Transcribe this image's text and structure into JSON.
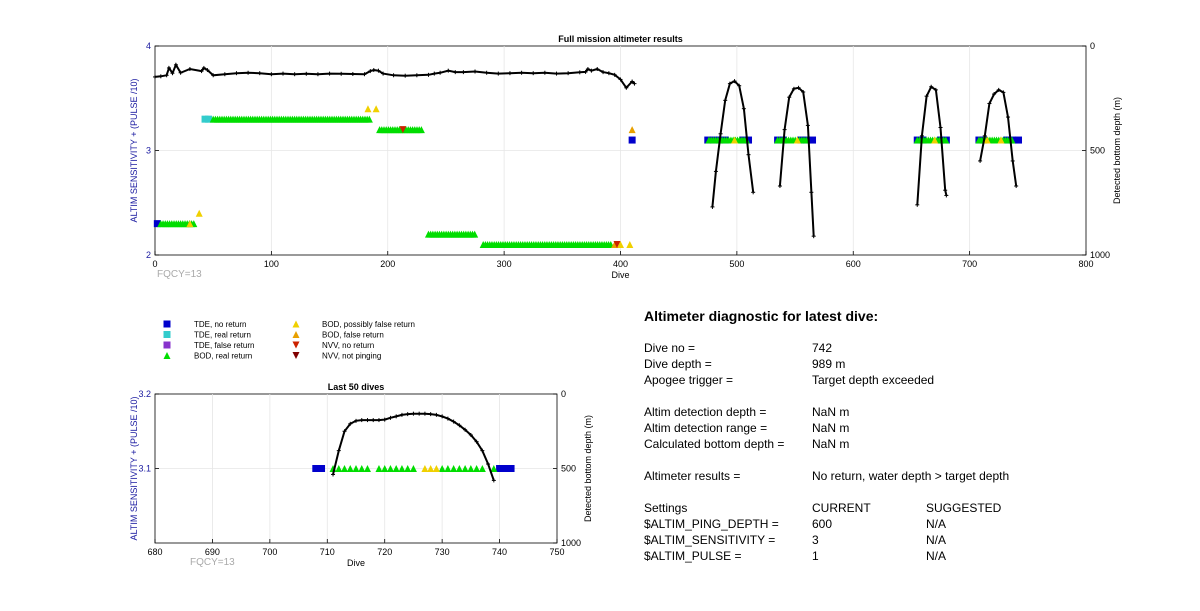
{
  "chart_data": [
    {
      "type": "scatter",
      "title": "Full mission altimeter results",
      "xlabel": "Dive",
      "ylabel": "ALTIM SENSITIVITY + (PULSE /10)",
      "y2label": "Detected bottom depth (m)",
      "xlim": [
        0,
        800
      ],
      "ylim": [
        2,
        4
      ],
      "y2lim": [
        0,
        1000
      ],
      "xticks": [
        "0",
        "100",
        "200",
        "300",
        "400",
        "500",
        "600",
        "700",
        "800"
      ],
      "yticks": [
        "2",
        "3",
        "4"
      ],
      "y2ticks": [
        "0",
        "500",
        "1000"
      ],
      "annotation": "FQCY=13",
      "grid": true,
      "series": [
        {
          "name": "TDE, no return",
          "marker": "square",
          "color": "#0000cc",
          "points": [
            [
              2,
              2.3
            ],
            [
              410,
              3.1
            ],
            [
              475,
              3.1
            ],
            [
              480,
              3.1
            ],
            [
              485,
              3.1
            ],
            [
              490,
              3.1
            ],
            [
              505,
              3.1
            ],
            [
              510,
              3.1
            ],
            [
              535,
              3.1
            ],
            [
              540,
              3.1
            ],
            [
              555,
              3.1
            ],
            [
              560,
              3.1
            ],
            [
              565,
              3.1
            ],
            [
              655,
              3.1
            ],
            [
              660,
              3.1
            ],
            [
              675,
              3.1
            ],
            [
              680,
              3.1
            ],
            [
              708,
              3.1
            ],
            [
              712,
              3.1
            ],
            [
              732,
              3.1
            ],
            [
              737,
              3.1
            ],
            [
              742,
              3.1
            ]
          ]
        },
        {
          "name": "TDE, real return",
          "marker": "square",
          "color": "#33cccc",
          "points": [
            [
              43,
              3.3
            ],
            [
              46,
              3.3
            ]
          ]
        },
        {
          "name": "BOD, real return",
          "marker": "triangle-up",
          "color": "#00dd00",
          "segments": [
            [
              5,
              2.3,
              35
            ],
            [
              50,
              3.3,
              185
            ],
            [
              193,
              3.2,
              230
            ],
            [
              235,
              2.2,
              275
            ],
            [
              282,
              2.1,
              392
            ],
            [
              476,
              3.1,
              510
            ],
            [
              535,
              3.1,
              560
            ],
            [
              655,
              3.1,
              680
            ],
            [
              708,
              3.1,
              738
            ]
          ]
        },
        {
          "name": "BOD, possibly false return",
          "marker": "triangle-up",
          "color": "#f0d000",
          "points": [
            [
              30,
              2.3
            ],
            [
              38,
              2.4
            ],
            [
              183,
              3.4
            ],
            [
              190,
              3.4
            ],
            [
              400,
              2.1
            ],
            [
              408,
              2.1
            ],
            [
              498,
              3.1
            ],
            [
              552,
              3.1
            ],
            [
              670,
              3.1
            ],
            [
              715,
              3.1
            ],
            [
              727,
              3.1
            ]
          ]
        },
        {
          "name": "BOD, false return",
          "marker": "triangle-up",
          "color": "#e8a000",
          "points": [
            [
              410,
              3.2
            ],
            [
              395,
              2.1
            ]
          ]
        },
        {
          "name": "NVV, no return",
          "marker": "triangle-down",
          "color": "#cc2200",
          "points": [
            [
              213,
              3.2
            ],
            [
              397,
              2.1
            ]
          ]
        },
        {
          "name": "NVV, not pinging",
          "marker": "triangle-down",
          "color": "#800000",
          "points": []
        },
        {
          "name": "Detected bottom depth",
          "axis": "y2",
          "marker": "dot",
          "color": "#000000",
          "points": [
            [
              0,
              148
            ],
            [
              5,
              145
            ],
            [
              10,
              140
            ],
            [
              12,
              105
            ],
            [
              15,
              130
            ],
            [
              18,
              90
            ],
            [
              22,
              128
            ],
            [
              30,
              110
            ],
            [
              40,
              120
            ],
            [
              42,
              105
            ],
            [
              45,
              115
            ],
            [
              50,
              140
            ],
            [
              60,
              135
            ],
            [
              70,
              130
            ],
            [
              80,
              128
            ],
            [
              90,
              130
            ],
            [
              100,
              135
            ],
            [
              110,
              132
            ],
            [
              120,
              135
            ],
            [
              130,
              133
            ],
            [
              140,
              135
            ],
            [
              150,
              132
            ],
            [
              160,
              133
            ],
            [
              170,
              134
            ],
            [
              180,
              135
            ],
            [
              185,
              120
            ],
            [
              188,
              115
            ],
            [
              192,
              118
            ],
            [
              196,
              132
            ],
            [
              205,
              140
            ],
            [
              215,
              142
            ],
            [
              225,
              140
            ],
            [
              235,
              138
            ],
            [
              240,
              132
            ],
            [
              245,
              128
            ],
            [
              252,
              118
            ],
            [
              258,
              125
            ],
            [
              265,
              125
            ],
            [
              275,
              122
            ],
            [
              285,
              128
            ],
            [
              295,
              132
            ],
            [
              305,
              130
            ],
            [
              315,
              128
            ],
            [
              325,
              130
            ],
            [
              335,
              128
            ],
            [
              345,
              132
            ],
            [
              355,
              130
            ],
            [
              365,
              126
            ],
            [
              370,
              124
            ],
            [
              372,
              110
            ],
            [
              375,
              118
            ],
            [
              380,
              110
            ],
            [
              385,
              125
            ],
            [
              390,
              130
            ],
            [
              395,
              138
            ],
            [
              400,
              160
            ],
            [
              405,
              200
            ],
            [
              410,
              170
            ],
            [
              412,
              180
            ]
          ]
        },
        {
          "name": "Bottom depth dives",
          "axis": "y2",
          "marker": "dot",
          "color": "#000000",
          "lines": [
            [
              [
                479,
                770
              ],
              [
                482,
                600
              ],
              [
                486,
                420
              ],
              [
                490,
                260
              ],
              [
                494,
                180
              ],
              [
                498,
                168
              ],
              [
                502,
                190
              ],
              [
                506,
                300
              ],
              [
                510,
                520
              ],
              [
                514,
                700
              ]
            ],
            [
              [
                537,
                670
              ],
              [
                541,
                400
              ],
              [
                545,
                245
              ],
              [
                549,
                205
              ],
              [
                553,
                200
              ],
              [
                557,
                220
              ],
              [
                561,
                380
              ],
              [
                564,
                700
              ],
              [
                566,
                910
              ]
            ],
            [
              [
                655,
                760
              ],
              [
                659,
                430
              ],
              [
                663,
                240
              ],
              [
                667,
                195
              ],
              [
                671,
                210
              ],
              [
                675,
                390
              ],
              [
                679,
                690
              ],
              [
                680,
                715
              ]
            ],
            [
              [
                709,
                550
              ],
              [
                713,
                430
              ],
              [
                717,
                275
              ],
              [
                721,
                230
              ],
              [
                725,
                210
              ],
              [
                729,
                222
              ],
              [
                733,
                340
              ],
              [
                737,
                550
              ],
              [
                740,
                670
              ]
            ]
          ]
        }
      ],
      "legend": "below-left"
    },
    {
      "type": "scatter",
      "title": "Last 50 dives",
      "xlabel": "Dive",
      "ylabel": "ALTIM SENSITIVITY + (PULSE /10)",
      "y2label": "Detected bottom depth (m)",
      "xlim": [
        680,
        750
      ],
      "ylim": [
        3.0,
        3.2
      ],
      "y2lim": [
        0,
        1000
      ],
      "xticks": [
        "680",
        "690",
        "700",
        "710",
        "720",
        "730",
        "740",
        "750"
      ],
      "yticks": [
        "3.1",
        "3.2"
      ],
      "y2ticks": [
        "0",
        "500",
        "1000"
      ],
      "annotation": "FQCY=13",
      "grid": true,
      "series": [
        {
          "name": "TDE, no return",
          "marker": "square",
          "color": "#0000cc",
          "points": [
            [
              708,
              3.1
            ],
            [
              709,
              3.1
            ],
            [
              740,
              3.1
            ],
            [
              741,
              3.1
            ],
            [
              742,
              3.1
            ]
          ]
        },
        {
          "name": "BOD, real return",
          "marker": "triangle-up",
          "color": "#00dd00",
          "points": [
            [
              711,
              3.1
            ],
            [
              712,
              3.1
            ],
            [
              713,
              3.1
            ],
            [
              714,
              3.1
            ],
            [
              715,
              3.1
            ],
            [
              716,
              3.1
            ],
            [
              717,
              3.1
            ],
            [
              719,
              3.1
            ],
            [
              720,
              3.1
            ],
            [
              721,
              3.1
            ],
            [
              722,
              3.1
            ],
            [
              723,
              3.1
            ],
            [
              724,
              3.1
            ],
            [
              725,
              3.1
            ],
            [
              730,
              3.1
            ],
            [
              731,
              3.1
            ],
            [
              732,
              3.1
            ],
            [
              733,
              3.1
            ],
            [
              734,
              3.1
            ],
            [
              735,
              3.1
            ],
            [
              736,
              3.1
            ],
            [
              737,
              3.1
            ],
            [
              739,
              3.1
            ]
          ]
        },
        {
          "name": "BOD, possibly false return",
          "marker": "triangle-up",
          "color": "#f0d000",
          "points": [
            [
              727,
              3.1
            ],
            [
              728,
              3.1
            ],
            [
              729,
              3.1
            ]
          ]
        },
        {
          "name": "Detected bottom depth",
          "axis": "y2",
          "marker": "dot",
          "color": "#000000",
          "points": [
            [
              711,
              540
            ],
            [
              712,
              380
            ],
            [
              713,
              250
            ],
            [
              714,
              200
            ],
            [
              715,
              180
            ],
            [
              716,
              175
            ],
            [
              717,
              175
            ],
            [
              718,
              175
            ],
            [
              719,
              175
            ],
            [
              720,
              172
            ],
            [
              721,
              160
            ],
            [
              722,
              150
            ],
            [
              723,
              140
            ],
            [
              724,
              135
            ],
            [
              725,
              132
            ],
            [
              726,
              132
            ],
            [
              727,
              132
            ],
            [
              728,
              135
            ],
            [
              729,
              140
            ],
            [
              730,
              150
            ],
            [
              731,
              165
            ],
            [
              732,
              185
            ],
            [
              733,
              210
            ],
            [
              734,
              240
            ],
            [
              735,
              275
            ],
            [
              736,
              320
            ],
            [
              737,
              380
            ],
            [
              738,
              470
            ],
            [
              739,
              580
            ]
          ]
        }
      ]
    }
  ],
  "legend_items": [
    {
      "label": "TDE, no return",
      "marker": "square",
      "color": "#0000cc"
    },
    {
      "label": "TDE, real return",
      "marker": "square",
      "color": "#33cccc"
    },
    {
      "label": "TDE, false return",
      "marker": "square",
      "color": "#8833cc"
    },
    {
      "label": "BOD, real return",
      "marker": "triangle-up",
      "color": "#00dd00"
    },
    {
      "label": "BOD, possibly false return",
      "marker": "triangle-up",
      "color": "#f0d000"
    },
    {
      "label": "BOD, false return",
      "marker": "triangle-up",
      "color": "#e8a000"
    },
    {
      "label": "NVV, no return",
      "marker": "triangle-down",
      "color": "#cc2200"
    },
    {
      "label": "NVV, not pinging",
      "marker": "triangle-down",
      "color": "#800000"
    }
  ],
  "diagnostic": {
    "title": "Altimeter diagnostic for latest dive:",
    "dive_no_label": "Dive no =",
    "dive_no": "742",
    "dive_depth_label": "Dive depth =",
    "dive_depth": "989 m",
    "apogee_label": "Apogee trigger =",
    "apogee": "Target depth exceeded",
    "altim_det_depth_label": "Altim detection depth =",
    "altim_det_depth": "NaN m",
    "altim_det_range_label": "Altim detection range =",
    "altim_det_range": "NaN m",
    "calc_bottom_label": "Calculated bottom depth =",
    "calc_bottom": "NaN m",
    "results_label": "Altimeter results =",
    "results": "No return, water depth > target depth",
    "settings_label": "Settings",
    "current_label": "CURRENT",
    "suggested_label": "SUGGESTED",
    "ping_depth_label": "$ALTIM_PING_DEPTH =",
    "ping_depth_current": "600",
    "ping_depth_suggested": "N/A",
    "sensitivity_label": "$ALTIM_SENSITIVITY =",
    "sensitivity_current": "3",
    "sensitivity_suggested": "N/A",
    "pulse_label": "$ALTIM_PULSE =",
    "pulse_current": "1",
    "pulse_suggested": "N/A"
  }
}
